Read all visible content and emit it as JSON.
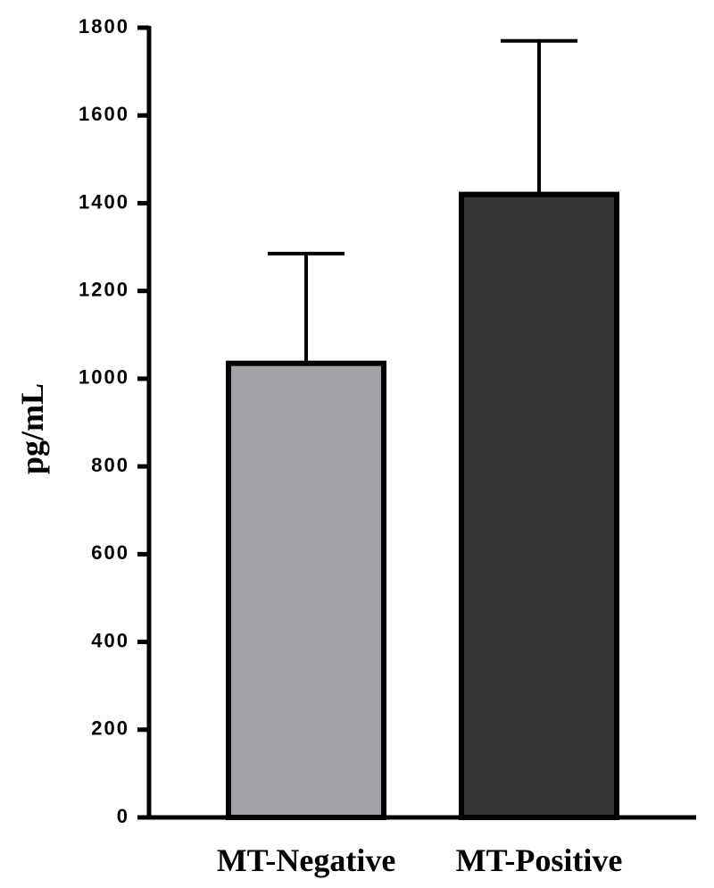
{
  "chart_data": {
    "type": "bar",
    "ylabel": "pg/mL",
    "categories": [
      "MT-Negative",
      "MT-Positive"
    ],
    "values": [
      1035,
      1420
    ],
    "errors": [
      250,
      350
    ],
    "colors": [
      "#a3a1a6",
      "#353535"
    ],
    "ylim": [
      0,
      1800
    ],
    "yticks": [
      0,
      200,
      400,
      600,
      800,
      1000,
      1200,
      1400,
      1600,
      1800
    ],
    "grid": false
  }
}
